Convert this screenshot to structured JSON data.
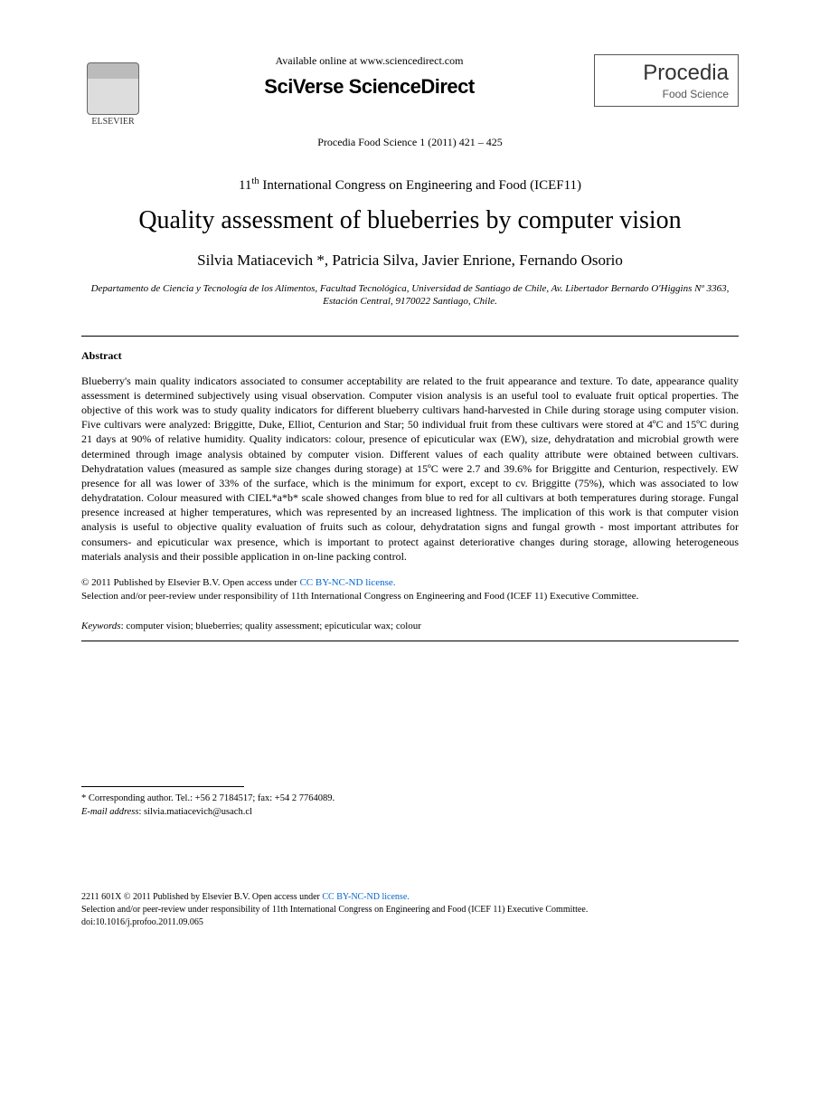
{
  "header": {
    "available_online": "Available online at www.sciencedirect.com",
    "sciverse_prefix": "SciVerse ",
    "sciverse_brand": "ScienceDirect",
    "elsevier_label": "ELSEVIER",
    "procedia_title": "Procedia",
    "procedia_subtitle": "Food Science",
    "journal_reference": "Procedia Food Science 1 (2011) 421 – 425"
  },
  "conference": "11th International Congress on Engineering and Food (ICEF11)",
  "conference_ordinal_sup": "th",
  "conference_prefix": "11",
  "conference_suffix": " International Congress on Engineering and Food (ICEF11)",
  "title": "Quality assessment of blueberries by computer vision",
  "authors": "Silvia Matiacevich *, Patricia Silva, Javier Enrione, Fernando Osorio",
  "affiliation": "Departamento de Ciencia y Tecnología de los Alimentos, Facultad Tecnológica, Universidad de Santiago de Chile, Av. Libertador Bernardo O'Higgins Nº 3363, Estación Central, 9170022 Santiago, Chile.",
  "abstract_heading": "Abstract",
  "abstract_text": "Blueberry's main quality indicators associated to consumer acceptability are related to the fruit appearance and texture. To date, appearance quality assessment is determined subjectively using visual observation. Computer vision analysis is an useful tool to evaluate fruit optical properties. The objective of this work was to study quality indicators for different blueberry cultivars hand-harvested in Chile during storage using computer vision. Five cultivars were analyzed: Briggitte, Duke, Elliot, Centurion and Star; 50 individual fruit from these cultivars were stored at 4ºC and 15ºC during 21 days at 90% of relative humidity. Quality indicators: colour, presence of epicuticular wax (EW), size, dehydratation and microbial growth were determined through image analysis obtained by computer vision. Different values of each quality attribute were obtained between cultivars. Dehydratation values (measured as sample size changes during storage) at 15ºC were 2.7 and 39.6% for Briggitte and Centurion, respectively. EW presence for all was lower of 33% of the surface, which is the minimum for export, except to cv. Briggitte (75%), which was associated to low dehydratation.  Colour measured with CIEL*a*b* scale showed changes from blue to red for all cultivars at both temperatures during storage. Fungal presence increased at higher temperatures, which was represented by an increased lightness. The implication of this work is that computer vision analysis is useful to objective quality evaluation of fruits such as colour, dehydratation signs and fungal growth - most important attributes for consumers- and epicuticular wax presence, which is important to protect against deteriorative changes during storage, allowing heterogeneous materials analysis and their possible application in on-line packing control.",
  "copyright": {
    "line1_prefix": "© 2011 Published by Elsevier B.V. ",
    "open_access_label": "Open access under ",
    "license_text": "CC BY-NC-ND license.",
    "line2": "Selection and/or peer-review under responsibility of 11th International Congress on Engineering and Food (ICEF 11) Executive Committee."
  },
  "keywords": {
    "label": "Keywords",
    "text": ": computer vision; blueberries; quality assessment; epicuticular wax; colour"
  },
  "footnote": {
    "corresponding": "* Corresponding author. Tel.: +56 2 7184517; fax: +54 2 7764089.",
    "email_label": "E-mail address",
    "email": ": silvia.matiacevich@usach.cl"
  },
  "footer": {
    "line1_prefix": "2211  601X © 2011 Published by Elsevier B.V. ",
    "open_access_label": "Open access under ",
    "license_text": "CC BY-NC-ND license.",
    "line2": "Selection and/or peer-review under responsibility of 11th International Congress on Engineering  and Food (ICEF 11) Executive Committee.",
    "doi": "doi:10.1016/j.profoo.2011.09.065"
  },
  "colors": {
    "link": "#0066cc",
    "text": "#000000",
    "background": "#ffffff"
  }
}
